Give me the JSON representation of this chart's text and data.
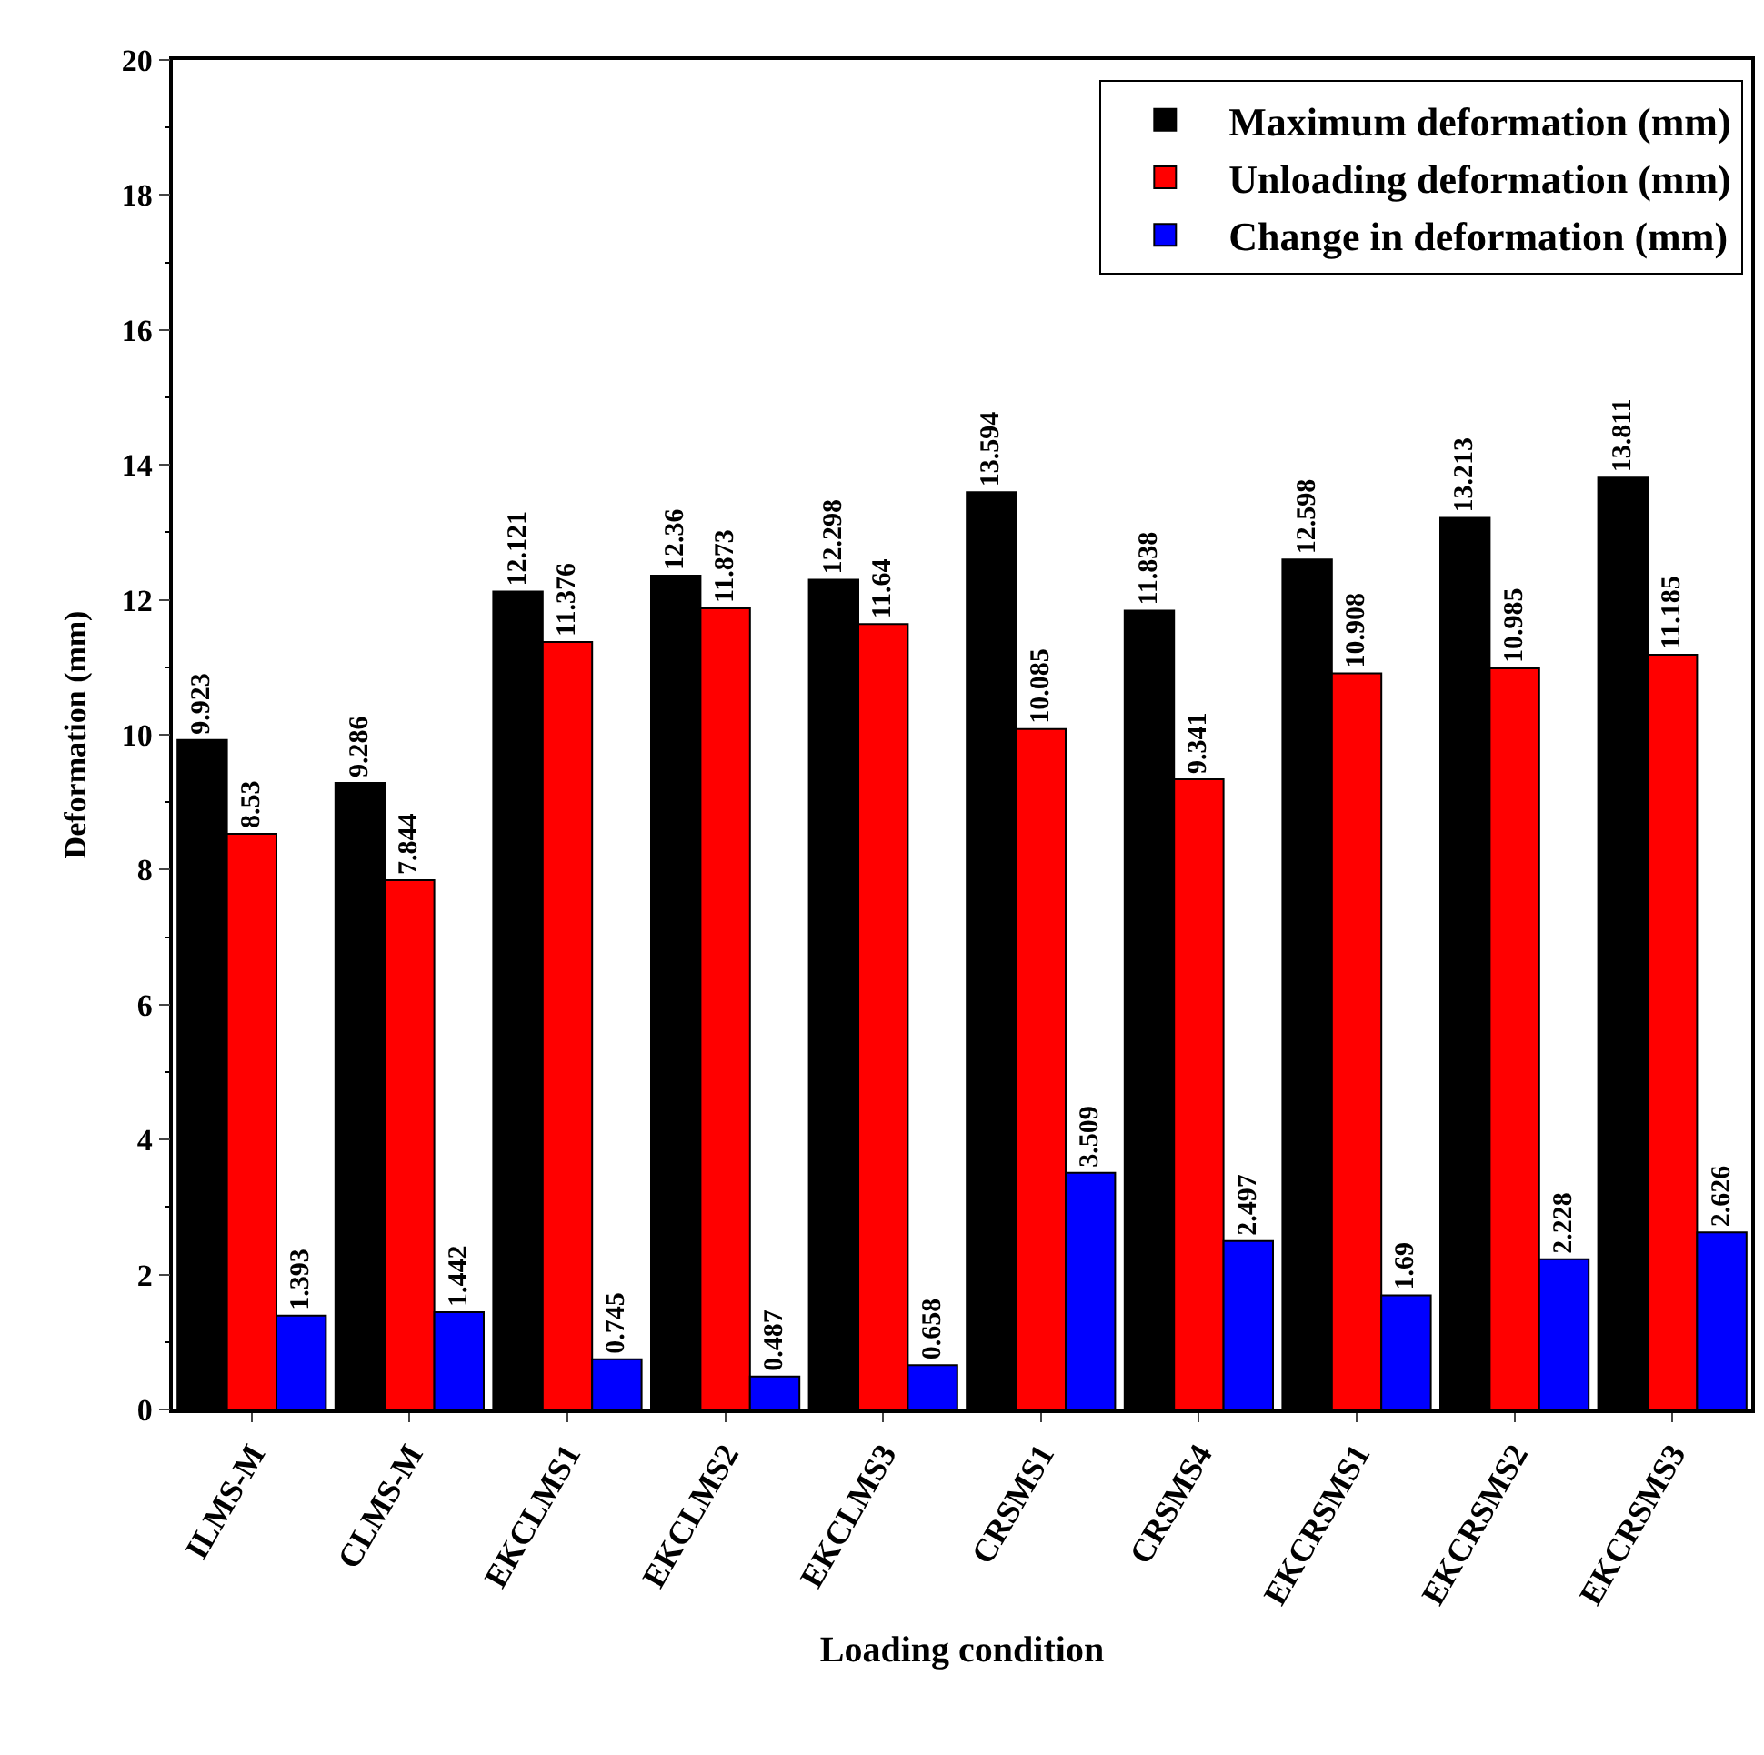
{
  "chart_data": {
    "type": "bar",
    "xlabel": "Loading condition",
    "ylabel": "Deformation (mm)",
    "categories": [
      "ILMS-M",
      "CLMS-M",
      "EKCLMS1",
      "EKCLMS2",
      "EKCLMS3",
      "CRSMS1",
      "CRSMS4",
      "EKCRSMS1",
      "EKCRSMS2",
      "EKCRSMS3"
    ],
    "series": [
      {
        "name": "Maximum deformation (mm)",
        "color": "#000000",
        "values": [
          9.923,
          9.286,
          12.121,
          12.36,
          12.298,
          13.594,
          11.838,
          12.598,
          13.213,
          13.811
        ]
      },
      {
        "name": "Unloading deformation (mm)",
        "color": "#ff0000",
        "values": [
          8.53,
          7.844,
          11.376,
          11.873,
          11.64,
          10.085,
          9.341,
          10.908,
          10.985,
          11.185
        ]
      },
      {
        "name": "Change in deformation (mm)",
        "color": "#0000ff",
        "values": [
          1.393,
          1.442,
          0.745,
          0.487,
          0.658,
          3.509,
          2.497,
          1.69,
          2.228,
          2.626
        ]
      }
    ],
    "ylim": [
      0,
      20
    ],
    "yticks": [
      0,
      2,
      4,
      6,
      8,
      10,
      12,
      14,
      16,
      18,
      20
    ],
    "data_labels": true,
    "legend": "top right"
  }
}
